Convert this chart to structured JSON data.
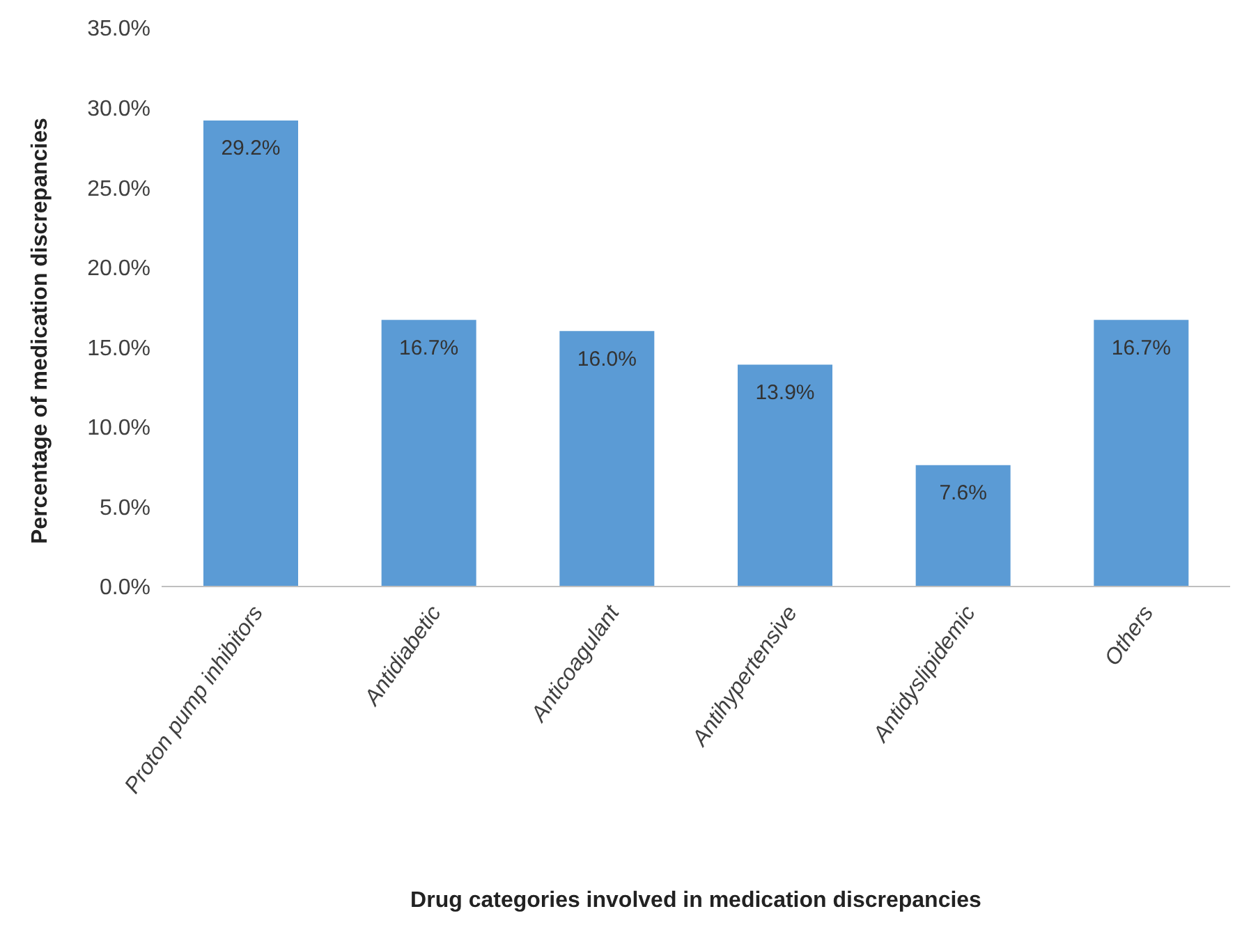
{
  "chart_data": {
    "type": "bar",
    "xlabel": "Drug categories involved in medication discrepancies",
    "ylabel": "Percentage of medication discrepancies",
    "categories": [
      "Proton pump inhibitors",
      "Antidiabetic",
      "Anticoagulant",
      "Antihypertensive",
      "Antidyslipidemic",
      "Others"
    ],
    "values": [
      29.2,
      16.7,
      16.0,
      13.9,
      7.6,
      16.7
    ],
    "value_labels": [
      "29.2%",
      "16.7%",
      "16.0%",
      "13.9%",
      "7.6%",
      "16.7%"
    ],
    "color": "#5b9bd5",
    "ylim": [
      0,
      35
    ],
    "yticks": [
      {
        "value": 0,
        "label": "0.0%"
      },
      {
        "value": 5,
        "label": "5.0%"
      },
      {
        "value": 10,
        "label": "10.0%"
      },
      {
        "value": 15,
        "label": "15.0%"
      },
      {
        "value": 20,
        "label": "20.0%"
      },
      {
        "value": 25,
        "label": "25.0%"
      },
      {
        "value": 30,
        "label": "30.0%"
      },
      {
        "value": 35,
        "label": "35.0%"
      }
    ],
    "grid": false,
    "legend": false
  }
}
